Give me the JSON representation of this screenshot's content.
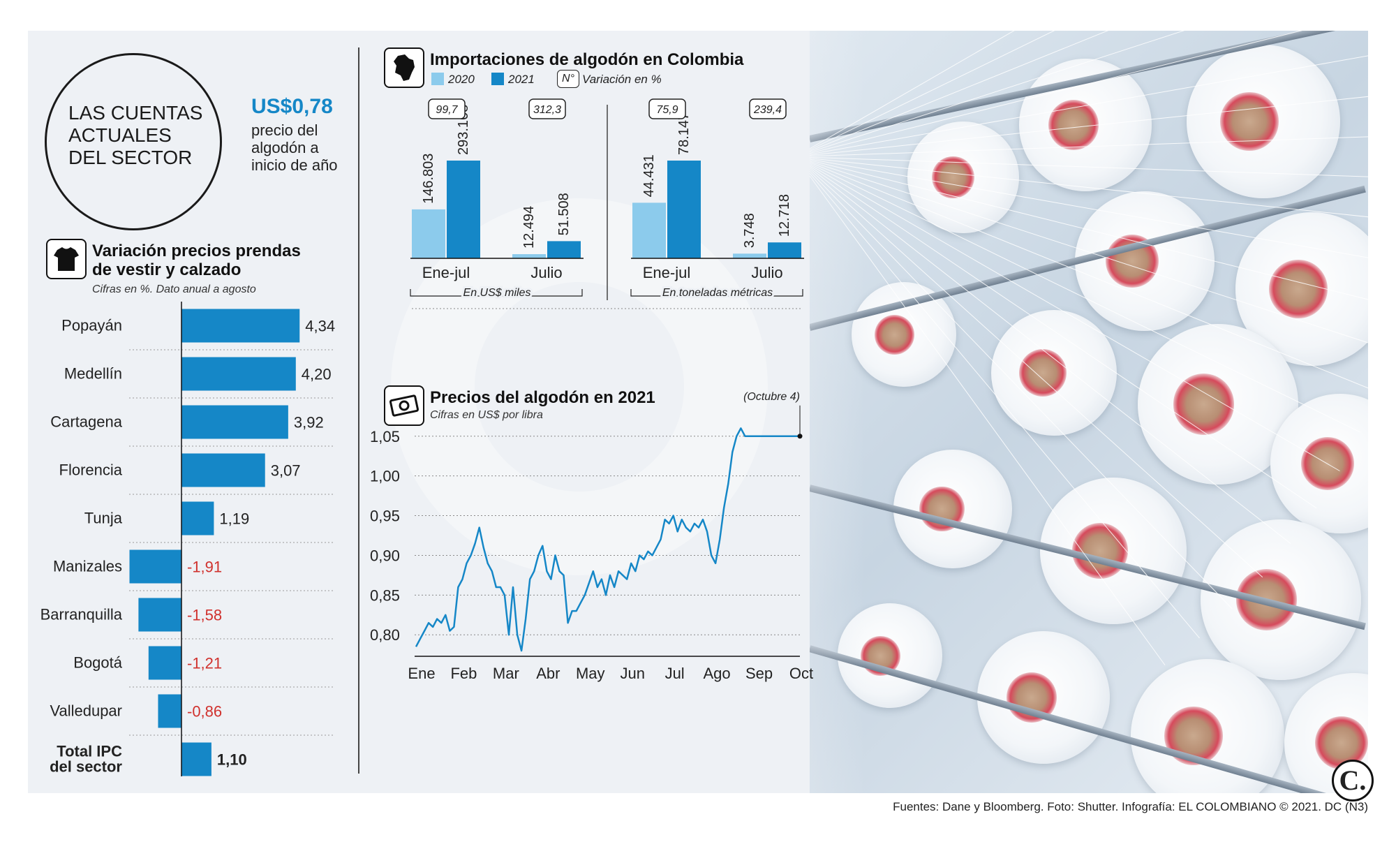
{
  "header": {
    "circle_title": "LAS CUENTAS\nACTUALES\nDEL SECTOR",
    "price_value": "US$0,78",
    "price_desc": "precio del\nalgodón a\ninicio de año"
  },
  "colors": {
    "blue": "#1587c7",
    "light_blue": "#8ccbec",
    "negative": "#d0312d",
    "dark": "#111111"
  },
  "chart_data": [
    {
      "type": "bar",
      "orientation": "horizontal",
      "title": "Variación precios prendas\nde vestir y calzado",
      "subtitle": "Cifras en %. Dato anual a agosto",
      "icon": "t-shirt-icon",
      "categories": [
        "Popayán",
        "Medellín",
        "Cartagena",
        "Florencia",
        "Tunja",
        "Manizales",
        "Barranquilla",
        "Bogotá",
        "Valledupar",
        "Total IPC\ndel sector"
      ],
      "values": [
        4.34,
        4.2,
        3.92,
        3.07,
        1.19,
        -1.91,
        -1.58,
        -1.21,
        -0.86,
        1.1
      ],
      "labels": [
        "4,34",
        "4,20",
        "3,92",
        "3,07",
        "1,19",
        "-1,91",
        "-1,58",
        "-1,21",
        "-0,86",
        "1,10"
      ]
    },
    {
      "type": "bar",
      "title": "Importaciones de algodón en Colombia",
      "icon": "colombia-map-icon",
      "legend": [
        "2020",
        "2021"
      ],
      "variation_legend": "Variación en %",
      "variation_symbol": "N°",
      "groups": [
        {
          "unit": "En US$ miles",
          "categories": [
            "Ene-jul",
            "Julio"
          ],
          "series": [
            {
              "name": "2020",
              "values": [
                146803,
                12494
              ],
              "labels": [
                "146.803",
                "12.494"
              ]
            },
            {
              "name": "2021",
              "values": [
                293168,
                51508
              ],
              "labels": [
                "293.168",
                "51.508"
              ]
            }
          ],
          "variation": [
            "99,7",
            "312,3"
          ]
        },
        {
          "unit": "En toneladas métricas",
          "categories": [
            "Ene-jul",
            "Julio"
          ],
          "series": [
            {
              "name": "2020",
              "values": [
                44431,
                3748
              ],
              "labels": [
                "44.431",
                "3.748"
              ]
            },
            {
              "name": "2021",
              "values": [
                78147,
                12718
              ],
              "labels": [
                "78.147",
                "12.718"
              ]
            }
          ],
          "variation": [
            "75,9",
            "239,4"
          ]
        }
      ]
    },
    {
      "type": "line",
      "title": "Precios del algodón en 2021",
      "subtitle": "Cifras en US$ por libra",
      "icon": "money-icon",
      "x_ticks": [
        "Ene",
        "Feb",
        "Mar",
        "Abr",
        "May",
        "Jun",
        "Jul",
        "Ago",
        "Sep",
        "Oct"
      ],
      "y_ticks": [
        "1,05",
        "1,00",
        "0,95",
        "0,90",
        "0,85",
        "0,80"
      ],
      "y_tick_values": [
        1.05,
        1.0,
        0.95,
        0.9,
        0.85,
        0.8
      ],
      "ylim": [
        0.78,
        1.07
      ],
      "annotation": {
        "value": "1,05",
        "date": "(Octubre 4)"
      },
      "x": [
        0.0,
        0.1,
        0.2,
        0.3,
        0.4,
        0.5,
        0.6,
        0.7,
        0.8,
        0.9,
        1.0,
        1.1,
        1.2,
        1.3,
        1.4,
        1.5,
        1.6,
        1.7,
        1.8,
        1.9,
        2.0,
        2.1,
        2.2,
        2.3,
        2.4,
        2.5,
        2.6,
        2.7,
        2.8,
        2.9,
        3.0,
        3.1,
        3.2,
        3.3,
        3.4,
        3.5,
        3.6,
        3.7,
        3.8,
        3.9,
        4.0,
        4.1,
        4.2,
        4.3,
        4.4,
        4.5,
        4.6,
        4.7,
        4.8,
        4.9,
        5.0,
        5.1,
        5.2,
        5.3,
        5.4,
        5.5,
        5.6,
        5.7,
        5.8,
        5.9,
        6.0,
        6.1,
        6.2,
        6.3,
        6.4,
        6.5,
        6.6,
        6.7,
        6.8,
        6.9,
        7.0,
        7.1,
        7.2,
        7.3,
        7.4,
        7.5,
        7.6,
        7.7,
        7.8,
        7.9,
        8.0,
        8.1,
        8.2,
        8.3,
        8.4,
        8.5,
        8.6,
        8.7,
        8.8,
        8.9,
        9.0,
        9.1
      ],
      "values": [
        0.785,
        0.795,
        0.805,
        0.815,
        0.81,
        0.82,
        0.815,
        0.825,
        0.805,
        0.81,
        0.86,
        0.87,
        0.89,
        0.9,
        0.915,
        0.935,
        0.91,
        0.89,
        0.88,
        0.86,
        0.86,
        0.85,
        0.8,
        0.86,
        0.8,
        0.78,
        0.82,
        0.87,
        0.88,
        0.9,
        0.912,
        0.88,
        0.87,
        0.9,
        0.88,
        0.875,
        0.815,
        0.83,
        0.83,
        0.84,
        0.85,
        0.865,
        0.88,
        0.86,
        0.87,
        0.85,
        0.875,
        0.86,
        0.88,
        0.875,
        0.87,
        0.89,
        0.88,
        0.9,
        0.895,
        0.905,
        0.9,
        0.91,
        0.92,
        0.945,
        0.94,
        0.95,
        0.93,
        0.945,
        0.935,
        0.93,
        0.94,
        0.935,
        0.945,
        0.93,
        0.9,
        0.89,
        0.92,
        0.96,
        0.99,
        1.03,
        1.05,
        1.06,
        1.05,
        1.05,
        1.05,
        1.05,
        1.05,
        1.05,
        1.05,
        1.05,
        1.05,
        1.05,
        1.05,
        1.05,
        1.05,
        1.05
      ]
    }
  ],
  "footer": {
    "source": "Fuentes: Dane y Bloomberg. Foto: Shutter. Infografía: EL COLOMBIANO © 2021. DC (N3)",
    "logo": "C."
  }
}
